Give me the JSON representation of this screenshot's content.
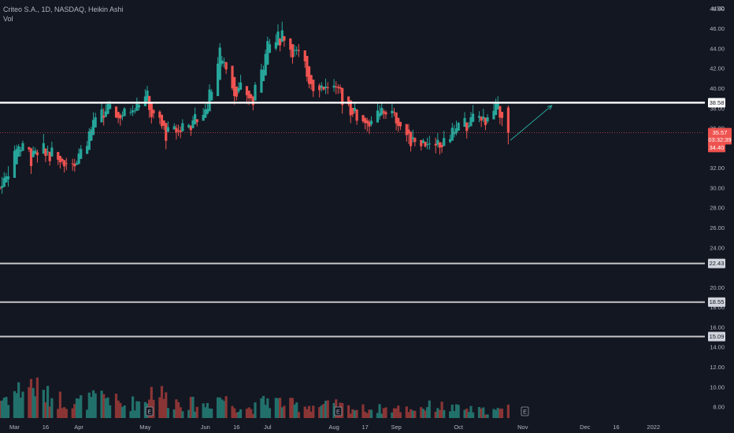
{
  "header": {
    "title": "Criteo S.A., 1D, NASDAQ, Heikin Ashi",
    "volume_label": "Vol"
  },
  "colors": {
    "background": "#131722",
    "up": "#26a69a",
    "down": "#ef5350",
    "volume_up": "#22706b",
    "volume_down": "#8a3535",
    "text": "#b2b5be",
    "resistance": "#ffffff",
    "support": "#c8c8c8",
    "arrow": "#26a69a",
    "current_price_line": "#ef5350"
  },
  "chart_data": {
    "type": "candlestick",
    "price_axis": {
      "currency": "USD",
      "range": [
        6.9,
        48.9
      ],
      "ticks": [
        "48.00",
        "46.00",
        "44.00",
        "42.00",
        "40.00",
        "38.00",
        "36.00",
        "32.00",
        "30.00",
        "28.00",
        "26.00",
        "24.00",
        "20.00",
        "18.00",
        "16.00",
        "14.00",
        "12.00",
        "10.00",
        "8.00"
      ]
    },
    "time_axis": {
      "range": [
        "2021-02-22",
        "2022-01-27"
      ],
      "ticks": [
        {
          "label": "Mar",
          "date": "2021-03-01"
        },
        {
          "label": "16",
          "date": "2021-03-16"
        },
        {
          "label": "Apr",
          "date": "2021-04-01"
        },
        {
          "label": "May",
          "date": "2021-05-03"
        },
        {
          "label": "Jun",
          "date": "2021-06-01"
        },
        {
          "label": "16",
          "date": "2021-06-16"
        },
        {
          "label": "Jul",
          "date": "2021-07-01"
        },
        {
          "label": "Aug",
          "date": "2021-08-02"
        },
        {
          "label": "17",
          "date": "2021-08-17"
        },
        {
          "label": "Sep",
          "date": "2021-09-01"
        },
        {
          "label": "Oct",
          "date": "2021-10-01"
        },
        {
          "label": "Nov",
          "date": "2021-11-01"
        },
        {
          "label": "Dec",
          "date": "2021-12-01"
        },
        {
          "label": "16",
          "date": "2021-12-16"
        },
        {
          "label": "2022",
          "date": "2022-01-03"
        }
      ]
    },
    "horizontal_levels": [
      {
        "value": 38.58,
        "label": "38.58",
        "role": "resistance"
      },
      {
        "value": 22.43,
        "label": "22.43",
        "role": "support"
      },
      {
        "value": 18.55,
        "label": "18.55",
        "role": "support"
      },
      {
        "value": 15.09,
        "label": "15.09",
        "role": "support"
      }
    ],
    "price_badges": [
      {
        "lines": [
          "35.57",
          "03:32:39"
        ],
        "value": 35.57
      },
      {
        "lines": [
          "34.40"
        ],
        "value": 34.4
      }
    ],
    "current_price": 35.57,
    "arrow": {
      "from": {
        "date": "2021-10-26",
        "price": 34.8
      },
      "to": {
        "date": "2021-11-15",
        "price": 38.3
      }
    },
    "earnings_markers": [
      {
        "label": "E",
        "date": "2021-05-05"
      },
      {
        "label": "E",
        "date": "2021-08-04"
      },
      {
        "label": "E",
        "date": "2021-11-02"
      }
    ],
    "volume_scale_max": 17.5,
    "keyframes": [
      {
        "date": "2021-02-22",
        "close": 30.0,
        "volume": 3.0
      },
      {
        "date": "2021-03-03",
        "close": 34.5,
        "volume": 4.5
      },
      {
        "date": "2021-03-09",
        "close": 33.2,
        "volume": 5.5
      },
      {
        "date": "2021-03-17",
        "close": 33.6,
        "volume": 3.5
      },
      {
        "date": "2021-03-24",
        "close": 32.8,
        "volume": 3.0
      },
      {
        "date": "2021-03-31",
        "close": 33.0,
        "volume": 2.5
      },
      {
        "date": "2021-04-08",
        "close": 36.5,
        "volume": 3.0
      },
      {
        "date": "2021-04-15",
        "close": 37.8,
        "volume": 3.5
      },
      {
        "date": "2021-04-22",
        "close": 37.2,
        "volume": 2.0
      },
      {
        "date": "2021-05-03",
        "close": 39.5,
        "volume": 3.0
      },
      {
        "date": "2021-05-07",
        "close": 37.0,
        "volume": 5.0
      },
      {
        "date": "2021-05-14",
        "close": 35.5,
        "volume": 3.0
      },
      {
        "date": "2021-05-21",
        "close": 36.2,
        "volume": 2.5
      },
      {
        "date": "2021-05-31",
        "close": 37.2,
        "volume": 2.0
      },
      {
        "date": "2021-06-08",
        "close": 43.5,
        "volume": 3.5
      },
      {
        "date": "2021-06-15",
        "close": 40.0,
        "volume": 2.0
      },
      {
        "date": "2021-06-24",
        "close": 38.8,
        "volume": 1.5
      },
      {
        "date": "2021-07-01",
        "close": 44.5,
        "volume": 3.0
      },
      {
        "date": "2021-07-08",
        "close": 45.5,
        "volume": 2.5
      },
      {
        "date": "2021-07-15",
        "close": 43.5,
        "volume": 2.0
      },
      {
        "date": "2021-07-23",
        "close": 40.5,
        "volume": 2.0
      },
      {
        "date": "2021-08-03",
        "close": 40.0,
        "volume": 2.0
      },
      {
        "date": "2021-08-12",
        "close": 37.5,
        "volume": 1.5
      },
      {
        "date": "2021-08-20",
        "close": 36.5,
        "volume": 1.5
      },
      {
        "date": "2021-08-27",
        "close": 38.0,
        "volume": 1.5
      },
      {
        "date": "2021-09-08",
        "close": 35.0,
        "volume": 1.5
      },
      {
        "date": "2021-09-20",
        "close": 34.0,
        "volume": 2.0
      },
      {
        "date": "2021-09-30",
        "close": 36.0,
        "volume": 1.5
      },
      {
        "date": "2021-10-12",
        "close": 37.0,
        "volume": 1.2
      },
      {
        "date": "2021-10-22",
        "close": 38.1,
        "volume": 1.2
      },
      {
        "date": "2021-10-25",
        "close": 35.57,
        "volume": 2.0
      }
    ]
  }
}
